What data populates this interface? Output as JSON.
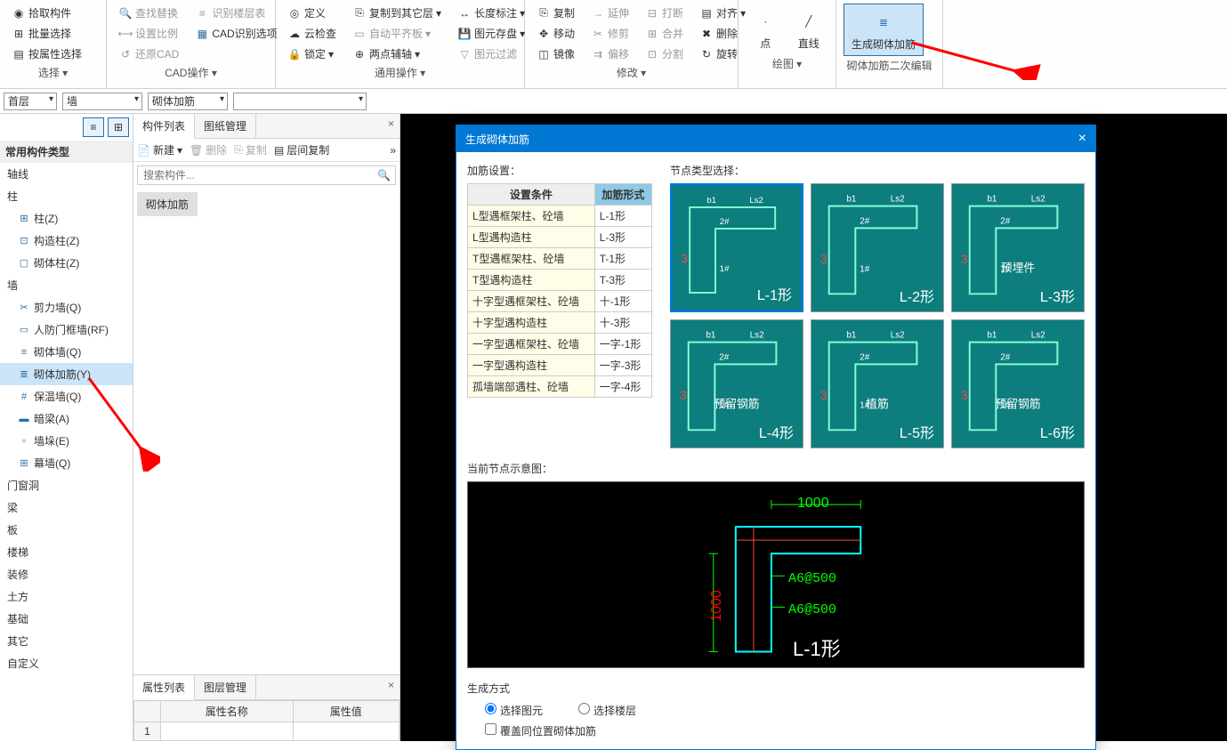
{
  "ribbon": {
    "group_select": {
      "label": "选择",
      "btn_pick": "拾取构件",
      "btn_batch": "批量选择",
      "btn_byprop": "按属性选择"
    },
    "group_cad": {
      "label": "CAD操作",
      "btn_findreplace": "查找替换",
      "btn_setscale": "设置比例",
      "btn_restorecad": "还原CAD",
      "btn_identifylayer": "识别楼层表",
      "btn_cadopts": "CAD识别选项"
    },
    "group_common": {
      "label": "通用操作",
      "btn_define": "定义",
      "btn_cloudcheck": "云检查",
      "btn_lock": "锁定",
      "btn_copytoother": "复制到其它层",
      "btn_autoflat": "自动平齐板",
      "btn_twopointaxis": "两点辅轴",
      "btn_lengthdim": "长度标注",
      "btn_imagestore": "图元存盘",
      "btn_imagefilter": "图元过滤"
    },
    "group_modify": {
      "label": "修改",
      "btn_copy": "复制",
      "btn_move": "移动",
      "btn_mirror": "镜像",
      "btn_extend": "延伸",
      "btn_trim": "修剪",
      "btn_offset": "偏移",
      "btn_break": "打断",
      "btn_merge": "合并",
      "btn_split": "分割",
      "btn_align": "对齐",
      "btn_delete": "删除",
      "btn_rotate": "旋转"
    },
    "group_draw": {
      "label": "绘图",
      "btn_point": "点",
      "btn_line": "直线"
    },
    "group_rebar": {
      "label": "砌体加筋二次编辑",
      "btn_generate": "生成砌体加筋"
    }
  },
  "sec_toolbar": {
    "dd_floor": "首层",
    "dd_wall": "墙",
    "dd_rebar": "砌体加筋"
  },
  "tree": {
    "header": "常用构件类型",
    "items": [
      {
        "label": "轴线",
        "children": []
      },
      {
        "label": "柱",
        "children": [
          {
            "label": "柱(Z)",
            "icon": "⊞"
          },
          {
            "label": "构造柱(Z)",
            "icon": "⊡"
          },
          {
            "label": "砌体柱(Z)",
            "icon": "▢"
          }
        ]
      },
      {
        "label": "墙",
        "children": [
          {
            "label": "剪力墙(Q)",
            "icon": "✂"
          },
          {
            "label": "人防门框墙(RF)",
            "icon": "▭"
          },
          {
            "label": "砌体墙(Q)",
            "icon": "≡"
          },
          {
            "label": "砌体加筋(Y)",
            "icon": "≣",
            "selected": true
          },
          {
            "label": "保温墙(Q)",
            "icon": "#"
          },
          {
            "label": "暗梁(A)",
            "icon": "▬"
          },
          {
            "label": "墙垛(E)",
            "icon": "▫"
          },
          {
            "label": "幕墙(Q)",
            "icon": "⊞"
          }
        ]
      },
      {
        "label": "门窗洞",
        "children": []
      },
      {
        "label": "梁",
        "children": []
      },
      {
        "label": "板",
        "children": []
      },
      {
        "label": "楼梯",
        "children": []
      },
      {
        "label": "装修",
        "children": []
      },
      {
        "label": "土方",
        "children": []
      },
      {
        "label": "基础",
        "children": []
      },
      {
        "label": "其它",
        "children": []
      },
      {
        "label": "自定义",
        "children": []
      }
    ]
  },
  "mid_panel": {
    "tab_list": "构件列表",
    "tab_drawing": "图纸管理",
    "btn_new": "新建",
    "btn_delete": "删除",
    "btn_copy": "复制",
    "btn_floorcopy": "层间复制",
    "search_placeholder": "搜索构件...",
    "component": "砌体加筋",
    "props_tab": "属性列表",
    "props_tab2": "图层管理",
    "col_name": "属性名称",
    "col_value": "属性值"
  },
  "dialog": {
    "title": "生成砌体加筋",
    "settings_label": "加筋设置：",
    "nodes_label": "节点类型选择：",
    "col_condition": "设置条件",
    "col_form": "加筋形式",
    "settings_rows": [
      {
        "cond": "L型遇框架柱、砼墙",
        "form": "L-1形"
      },
      {
        "cond": "L型遇构造柱",
        "form": "L-3形"
      },
      {
        "cond": "T型遇框架柱、砼墙",
        "form": "T-1形"
      },
      {
        "cond": "T型遇构造柱",
        "form": "T-3形"
      },
      {
        "cond": "十字型遇框架柱、砼墙",
        "form": "十-1形"
      },
      {
        "cond": "十字型遇构造柱",
        "form": "十-3形"
      },
      {
        "cond": "一字型遇框架柱、砼墙",
        "form": "一字-1形"
      },
      {
        "cond": "一字型遇构造柱",
        "form": "一字-3形"
      },
      {
        "cond": "孤墙端部遇柱、砼墙",
        "form": "一字-4形"
      }
    ],
    "nodes": [
      {
        "label": "L-1形",
        "selected": true
      },
      {
        "label": "L-2形"
      },
      {
        "label": "L-3形",
        "sublabel": "预埋件"
      },
      {
        "label": "L-4形",
        "sublabel": "预留钢筋"
      },
      {
        "label": "L-5形",
        "sublabel": "植筋"
      },
      {
        "label": "L-6形",
        "sublabel": "预留钢筋"
      }
    ],
    "preview_label": "当前节点示意图：",
    "preview_dim_h": "1000",
    "preview_dim_v": "1000",
    "preview_rebar1": "A6@500",
    "preview_rebar2": "A6@500",
    "preview_shape": "L-1形",
    "gen_label": "生成方式",
    "radio_element": "选择图元",
    "radio_floor": "选择楼层",
    "checkbox_overwrite": "覆盖同位置砌体加筋"
  },
  "colors": {
    "node_bg": "#0d7d7d",
    "dialog_title_bg": "#0078d4",
    "select_border": "#0078d4",
    "red_arrow": "#ff0000",
    "preview_green": "#00ff00",
    "preview_cyan": "#00ffff"
  }
}
